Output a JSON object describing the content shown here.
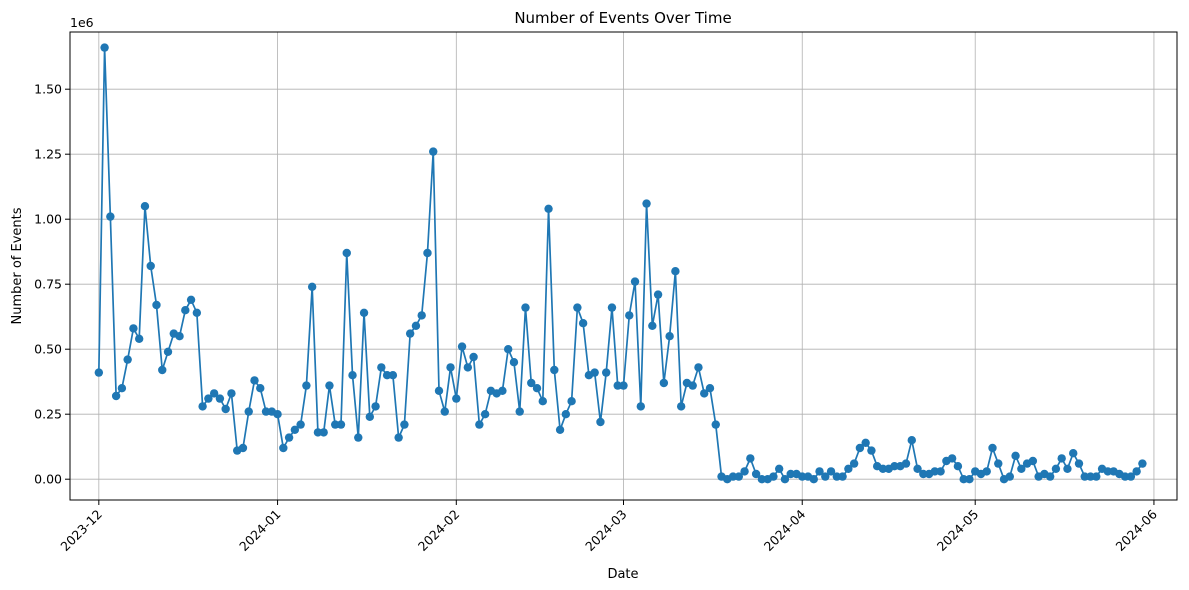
{
  "chart_data": {
    "type": "line",
    "title": "Number of Events Over Time",
    "xlabel": "Date",
    "ylabel": "Number of Events",
    "y_offset_text": "1e6",
    "y_scale": 1000000,
    "xlim": [
      "2023-11-26",
      "2024-06-05"
    ],
    "ylim": [
      -0.08,
      1.72
    ],
    "x_ticks": [
      "2023-12-01",
      "2024-01-01",
      "2024-02-01",
      "2024-03-01",
      "2024-04-01",
      "2024-05-01",
      "2024-06-01"
    ],
    "x_tick_labels": [
      "2023-12",
      "2024-01",
      "2024-02",
      "2024-03",
      "2024-04",
      "2024-05",
      "2024-06"
    ],
    "y_ticks": [
      0.0,
      0.25,
      0.5,
      0.75,
      1.0,
      1.25,
      1.5
    ],
    "y_tick_labels": [
      "0.00",
      "0.25",
      "0.50",
      "0.75",
      "1.00",
      "1.25",
      "1.50"
    ],
    "grid": true,
    "marker": "circle",
    "color": "#1f77b4",
    "start_date": "2023-12-01",
    "series": [
      {
        "values": [
          0.41,
          1.66,
          1.01,
          0.32,
          0.35,
          0.46,
          0.58,
          0.54,
          1.05,
          0.82,
          0.67,
          0.42,
          0.49,
          0.56,
          0.55,
          0.65,
          0.69,
          0.64,
          0.28,
          0.31,
          0.33,
          0.31,
          0.27,
          0.33,
          0.11,
          0.12,
          0.26,
          0.38,
          0.35,
          0.26,
          0.26,
          0.25,
          0.12,
          0.16,
          0.19,
          0.21,
          0.36,
          0.74,
          0.18,
          0.18,
          0.36,
          0.21,
          0.21,
          0.87,
          0.4,
          0.16,
          0.64,
          0.24,
          0.28,
          0.43,
          0.4,
          0.4,
          0.16,
          0.21,
          0.56,
          0.59,
          0.63,
          0.87,
          1.26,
          0.34,
          0.26,
          0.43,
          0.31,
          0.51,
          0.43,
          0.47,
          0.21,
          0.25,
          0.34,
          0.33,
          0.34,
          0.5,
          0.45,
          0.26,
          0.66,
          0.37,
          0.35,
          0.3,
          1.04,
          0.42,
          0.19,
          0.25,
          0.3,
          0.66,
          0.6,
          0.4,
          0.41,
          0.22,
          0.41,
          0.66,
          0.36,
          0.36,
          0.63,
          0.76,
          0.28,
          1.06,
          0.59,
          0.71,
          0.37,
          0.55,
          0.8,
          0.28,
          0.37,
          0.36,
          0.43,
          0.33,
          0.35,
          0.21,
          0.01,
          0.0,
          0.01,
          0.01,
          0.03,
          0.08,
          0.02,
          0.0,
          0.0,
          0.01,
          0.04,
          0.0,
          0.02,
          0.02,
          0.01,
          0.01,
          0.0,
          0.03,
          0.01,
          0.03,
          0.01,
          0.01,
          0.04,
          0.06,
          0.12,
          0.14,
          0.11,
          0.05,
          0.04,
          0.04,
          0.05,
          0.05,
          0.06,
          0.15,
          0.04,
          0.02,
          0.02,
          0.03,
          0.03,
          0.07,
          0.08,
          0.05,
          0.0,
          0.0,
          0.03,
          0.02,
          0.03,
          0.12,
          0.06,
          0.0,
          0.01,
          0.09,
          0.04,
          0.06,
          0.07,
          0.01,
          0.02,
          0.01,
          0.04,
          0.08,
          0.04,
          0.1,
          0.06,
          0.01,
          0.01,
          0.01,
          0.04,
          0.03,
          0.03,
          0.02,
          0.01,
          0.01,
          0.03,
          0.06
        ]
      }
    ]
  }
}
